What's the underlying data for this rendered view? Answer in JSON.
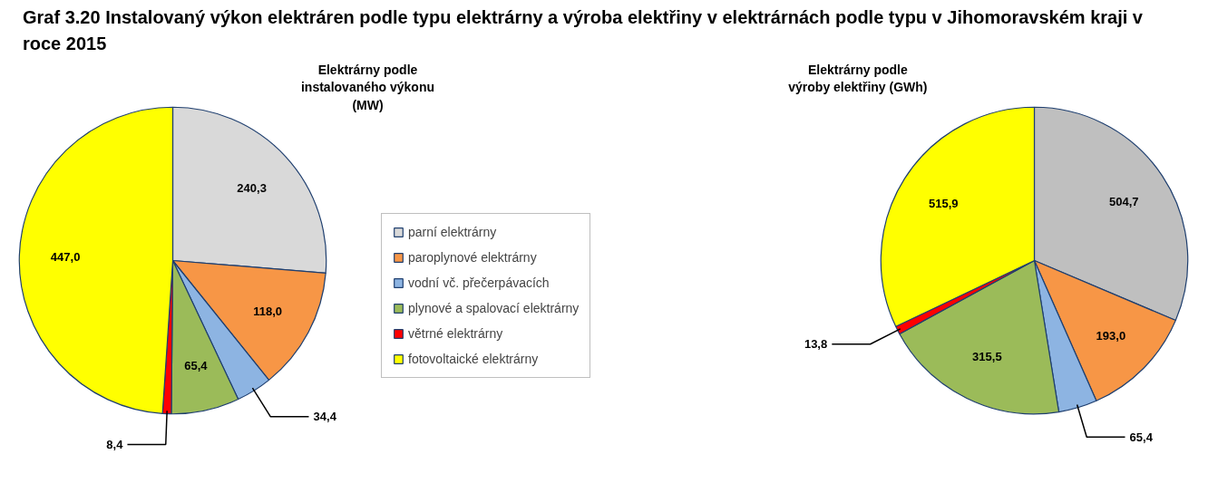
{
  "chart_data": [
    {
      "type": "pie",
      "title": "Graf 3.20 Instalovaný výkon elektráren podle typu elektrárny a výroba elektřiny v elektrárnách podle typu v Jihomoravském kraji v roce 2015",
      "subtitle": "Elektrárny podle instalovaného výkonu (MW)",
      "categories": [
        "parní elektrárny",
        "paroplynové elektrárny",
        "vodní vč. přečerpávacích",
        "plynové a spalovací elektrárny",
        "větrné elektrárny",
        "fotovoltaické elektrárny"
      ],
      "values": [
        240.3,
        118.0,
        34.4,
        65.4,
        8.4,
        447.0
      ],
      "value_labels": [
        "240,3",
        "118,0",
        "34,4",
        "65,4",
        "8,4",
        "447,0"
      ],
      "colors": [
        "#d9d9d9",
        "#f79646",
        "#8db4e2",
        "#9bbb59",
        "#ff0000",
        "#ffff00"
      ],
      "legend": "right"
    },
    {
      "type": "pie",
      "subtitle": "Elektrárny podle výroby elektřiny (GWh)",
      "categories": [
        null,
        null,
        null,
        null,
        null,
        null
      ],
      "values": [
        504.7,
        193.0,
        65.4,
        315.5,
        13.8,
        515.9
      ],
      "value_labels": [
        "504,7",
        "193,0",
        "65,4",
        "315,5",
        "13,8",
        "515,9"
      ],
      "colors": [
        "#bfbfbf",
        "#f79646",
        "#8db4e2",
        "#9bbb59",
        "#ff0000",
        "#ffff00"
      ]
    }
  ]
}
